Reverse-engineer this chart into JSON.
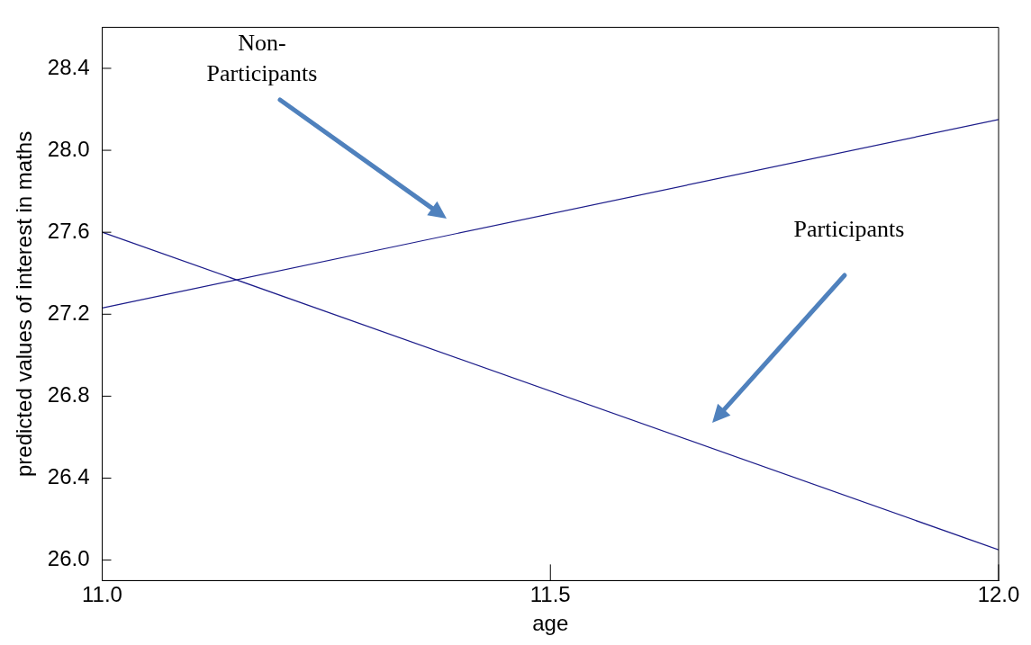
{
  "chart_data": {
    "type": "line",
    "xlabel": "age",
    "ylabel": "predicted values of interest in maths",
    "xlim": [
      11.0,
      12.0
    ],
    "xticks": [
      {
        "value": 11,
        "label": "11.0"
      },
      11.5,
      {
        "value": 12,
        "label": "12.0"
      }
    ],
    "ylim": [
      25.9,
      28.6
    ],
    "yticks": [
      {
        "value": 26,
        "label": "26.0"
      },
      26.4,
      26.8,
      27.2,
      27.6,
      {
        "value": 28,
        "label": "28.0"
      },
      28.4
    ],
    "x": [
      11.0,
      12.0
    ],
    "grid": false,
    "legend": false,
    "marker": "none",
    "line_style": "solid",
    "series": [
      {
        "color": "#1c1c8a",
        "values": [
          27.23,
          28.15
        ]
      },
      {
        "color": "#1c1c8a",
        "values": [
          27.6,
          26.05
        ]
      }
    ],
    "annotations": [
      "Non-\nParticipants",
      "Participants"
    ]
  }
}
